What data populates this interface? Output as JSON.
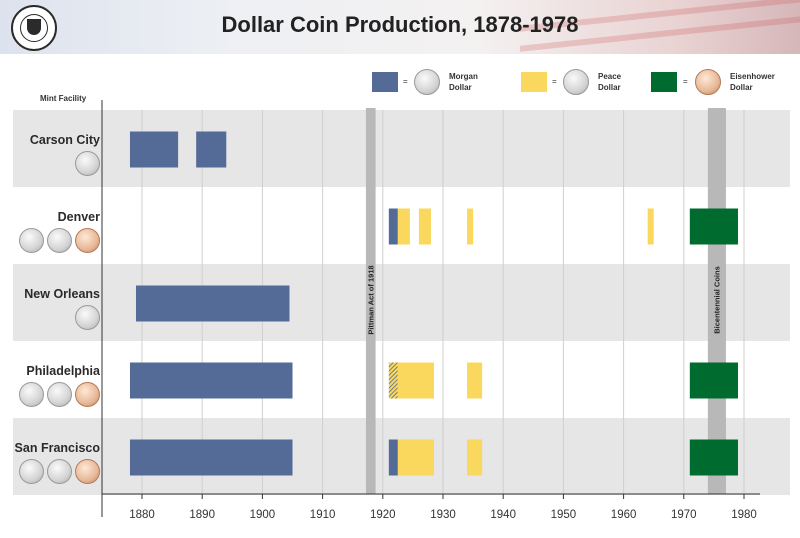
{
  "header": {
    "title": "Dollar Coin Production, 1878-1978"
  },
  "legend": [
    {
      "key": "morgan",
      "label_line1": "Morgan",
      "label_line2": "Dollar",
      "color": "#536b96",
      "equals": "="
    },
    {
      "key": "peace",
      "label_line1": "Peace",
      "label_line2": "Dollar",
      "color": "#fad85d",
      "equals": "="
    },
    {
      "key": "eisenhower",
      "label_line1": "Eisenhower",
      "label_line2": "Dollar",
      "color": "#006b2e",
      "equals": "="
    }
  ],
  "chart_data": {
    "type": "bar",
    "orientation": "horizontal",
    "title": "Dollar Coin Production, 1878-1978",
    "ylabel": "Mint Facility",
    "xlabel": "",
    "xlim": [
      1872,
      1982
    ],
    "x_ticks": [
      1880,
      1890,
      1900,
      1910,
      1920,
      1930,
      1940,
      1950,
      1960,
      1970,
      1980
    ],
    "grid": "vertical",
    "legend_position": "top-right",
    "colors": {
      "Morgan Dollar": "#536b96",
      "Peace Dollar": "#fad85d",
      "Eisenhower Dollar": "#006b2e"
    },
    "annotations": [
      {
        "label": "Pittman Act of 1918",
        "year": 1918
      },
      {
        "label": "Bicentennial Coins",
        "start": 1974,
        "end": 1977
      }
    ],
    "rows": [
      {
        "mint": "Carson City",
        "coins": [
          "silver"
        ],
        "segments": [
          {
            "series": "Morgan Dollar",
            "start": 1878,
            "end": 1886
          },
          {
            "series": "Morgan Dollar",
            "start": 1889,
            "end": 1894
          }
        ]
      },
      {
        "mint": "Denver",
        "coins": [
          "silver",
          "silver",
          "copper"
        ],
        "segments": [
          {
            "series": "Morgan Dollar",
            "start": 1921,
            "end": 1922.5
          },
          {
            "series": "Peace Dollar",
            "start": 1922.5,
            "end": 1924.5
          },
          {
            "series": "Peace Dollar",
            "start": 1926,
            "end": 1928
          },
          {
            "series": "Peace Dollar",
            "start": 1934,
            "end": 1935
          },
          {
            "series": "Peace Dollar",
            "start": 1964,
            "end": 1965
          },
          {
            "series": "Eisenhower Dollar",
            "start": 1971,
            "end": 1979
          }
        ]
      },
      {
        "mint": "New Orleans",
        "coins": [
          "silver"
        ],
        "segments": [
          {
            "series": "Morgan Dollar",
            "start": 1879,
            "end": 1904.5
          }
        ]
      },
      {
        "mint": "Philadelphia",
        "coins": [
          "silver",
          "silver",
          "copper"
        ],
        "segments": [
          {
            "series": "Morgan Dollar",
            "start": 1878,
            "end": 1905
          },
          {
            "series": "Morgan Dollar",
            "start": 1921,
            "end": 1922.5,
            "hatched": true
          },
          {
            "series": "Peace Dollar",
            "start": 1922.5,
            "end": 1928.5
          },
          {
            "series": "Peace Dollar",
            "start": 1934,
            "end": 1936.5
          },
          {
            "series": "Eisenhower Dollar",
            "start": 1971,
            "end": 1979
          }
        ]
      },
      {
        "mint": "San Francisco",
        "coins": [
          "silver",
          "silver",
          "copper"
        ],
        "segments": [
          {
            "series": "Morgan Dollar",
            "start": 1878,
            "end": 1905
          },
          {
            "series": "Morgan Dollar",
            "start": 1921,
            "end": 1922.5
          },
          {
            "series": "Peace Dollar",
            "start": 1922.5,
            "end": 1928.5
          },
          {
            "series": "Peace Dollar",
            "start": 1934,
            "end": 1936.5
          },
          {
            "series": "Eisenhower Dollar",
            "start": 1971,
            "end": 1979
          }
        ]
      }
    ]
  }
}
